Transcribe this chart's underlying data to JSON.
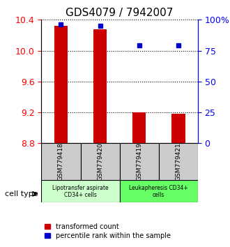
{
  "title": "GDS4079 / 7942007",
  "samples": [
    "GSM779418",
    "GSM779420",
    "GSM779419",
    "GSM779421"
  ],
  "transformed_counts": [
    10.32,
    10.28,
    9.2,
    9.18
  ],
  "percentile_ranks": [
    96,
    95,
    79,
    79
  ],
  "ylim_left": [
    8.8,
    10.4
  ],
  "ylim_right": [
    0,
    100
  ],
  "yticks_left": [
    8.8,
    9.2,
    9.6,
    10.0,
    10.4
  ],
  "yticks_right": [
    0,
    25,
    50,
    75,
    100
  ],
  "ytick_labels_right": [
    "0",
    "25",
    "50",
    "75",
    "100%"
  ],
  "bar_color": "#cc0000",
  "dot_color": "#0000cc",
  "bar_width": 0.35,
  "groups": [
    {
      "label": "Lipotransfer aspirate\nCD34+ cells",
      "color": "#ccffcc",
      "samples": [
        0,
        1
      ]
    },
    {
      "label": "Leukapheresis CD34+\ncells",
      "color": "#66ff66",
      "samples": [
        2,
        3
      ]
    }
  ],
  "cell_type_label": "cell type",
  "legend_items": [
    {
      "color": "#cc0000",
      "label": "transformed count"
    },
    {
      "color": "#0000cc",
      "label": "percentile rank within the sample"
    }
  ],
  "grid_color": "#000000",
  "background_color": "#ffffff",
  "sample_box_color": "#cccccc",
  "title_fontsize": 11,
  "tick_fontsize": 9,
  "label_fontsize": 8
}
